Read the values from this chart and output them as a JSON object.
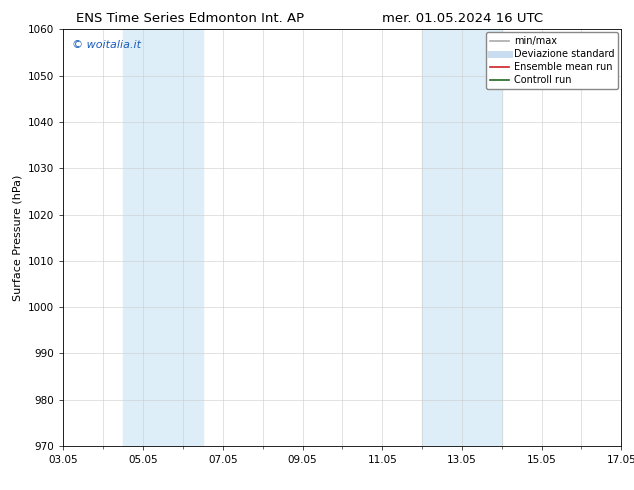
{
  "title_left": "ENS Time Series Edmonton Int. AP",
  "title_right": "mer. 01.05.2024 16 UTC",
  "ylabel": "Surface Pressure (hPa)",
  "ylim": [
    970,
    1060
  ],
  "yticks": [
    970,
    980,
    990,
    1000,
    1010,
    1020,
    1030,
    1040,
    1050,
    1060
  ],
  "xtick_labels": [
    "03.05",
    "05.05",
    "07.05",
    "09.05",
    "11.05",
    "13.05",
    "15.05",
    "17.05"
  ],
  "xmin_days": 2,
  "xmax_days": 16,
  "xtick_days": [
    2,
    4,
    6,
    8,
    10,
    12,
    14,
    16
  ],
  "shaded_bands": [
    {
      "xstart": 3.5,
      "xend": 5.5
    },
    {
      "xstart": 11.0,
      "xend": 13.0
    }
  ],
  "shaded_color": "#ddeef8",
  "watermark_text": "© woitalia.it",
  "watermark_color": "#1a5cba",
  "legend_entries": [
    {
      "label": "min/max",
      "color": "#aaaaaa",
      "lw": 1.2
    },
    {
      "label": "Deviazione standard",
      "color": "#c8ddf0",
      "lw": 5
    },
    {
      "label": "Ensemble mean run",
      "color": "#cc2222",
      "lw": 1.2
    },
    {
      "label": "Controll run",
      "color": "#226622",
      "lw": 1.2
    }
  ],
  "background_color": "#ffffff",
  "grid_color": "#cccccc",
  "title_fontsize": 9.5,
  "tick_fontsize": 7.5,
  "ylabel_fontsize": 8,
  "legend_fontsize": 7,
  "watermark_fontsize": 8
}
